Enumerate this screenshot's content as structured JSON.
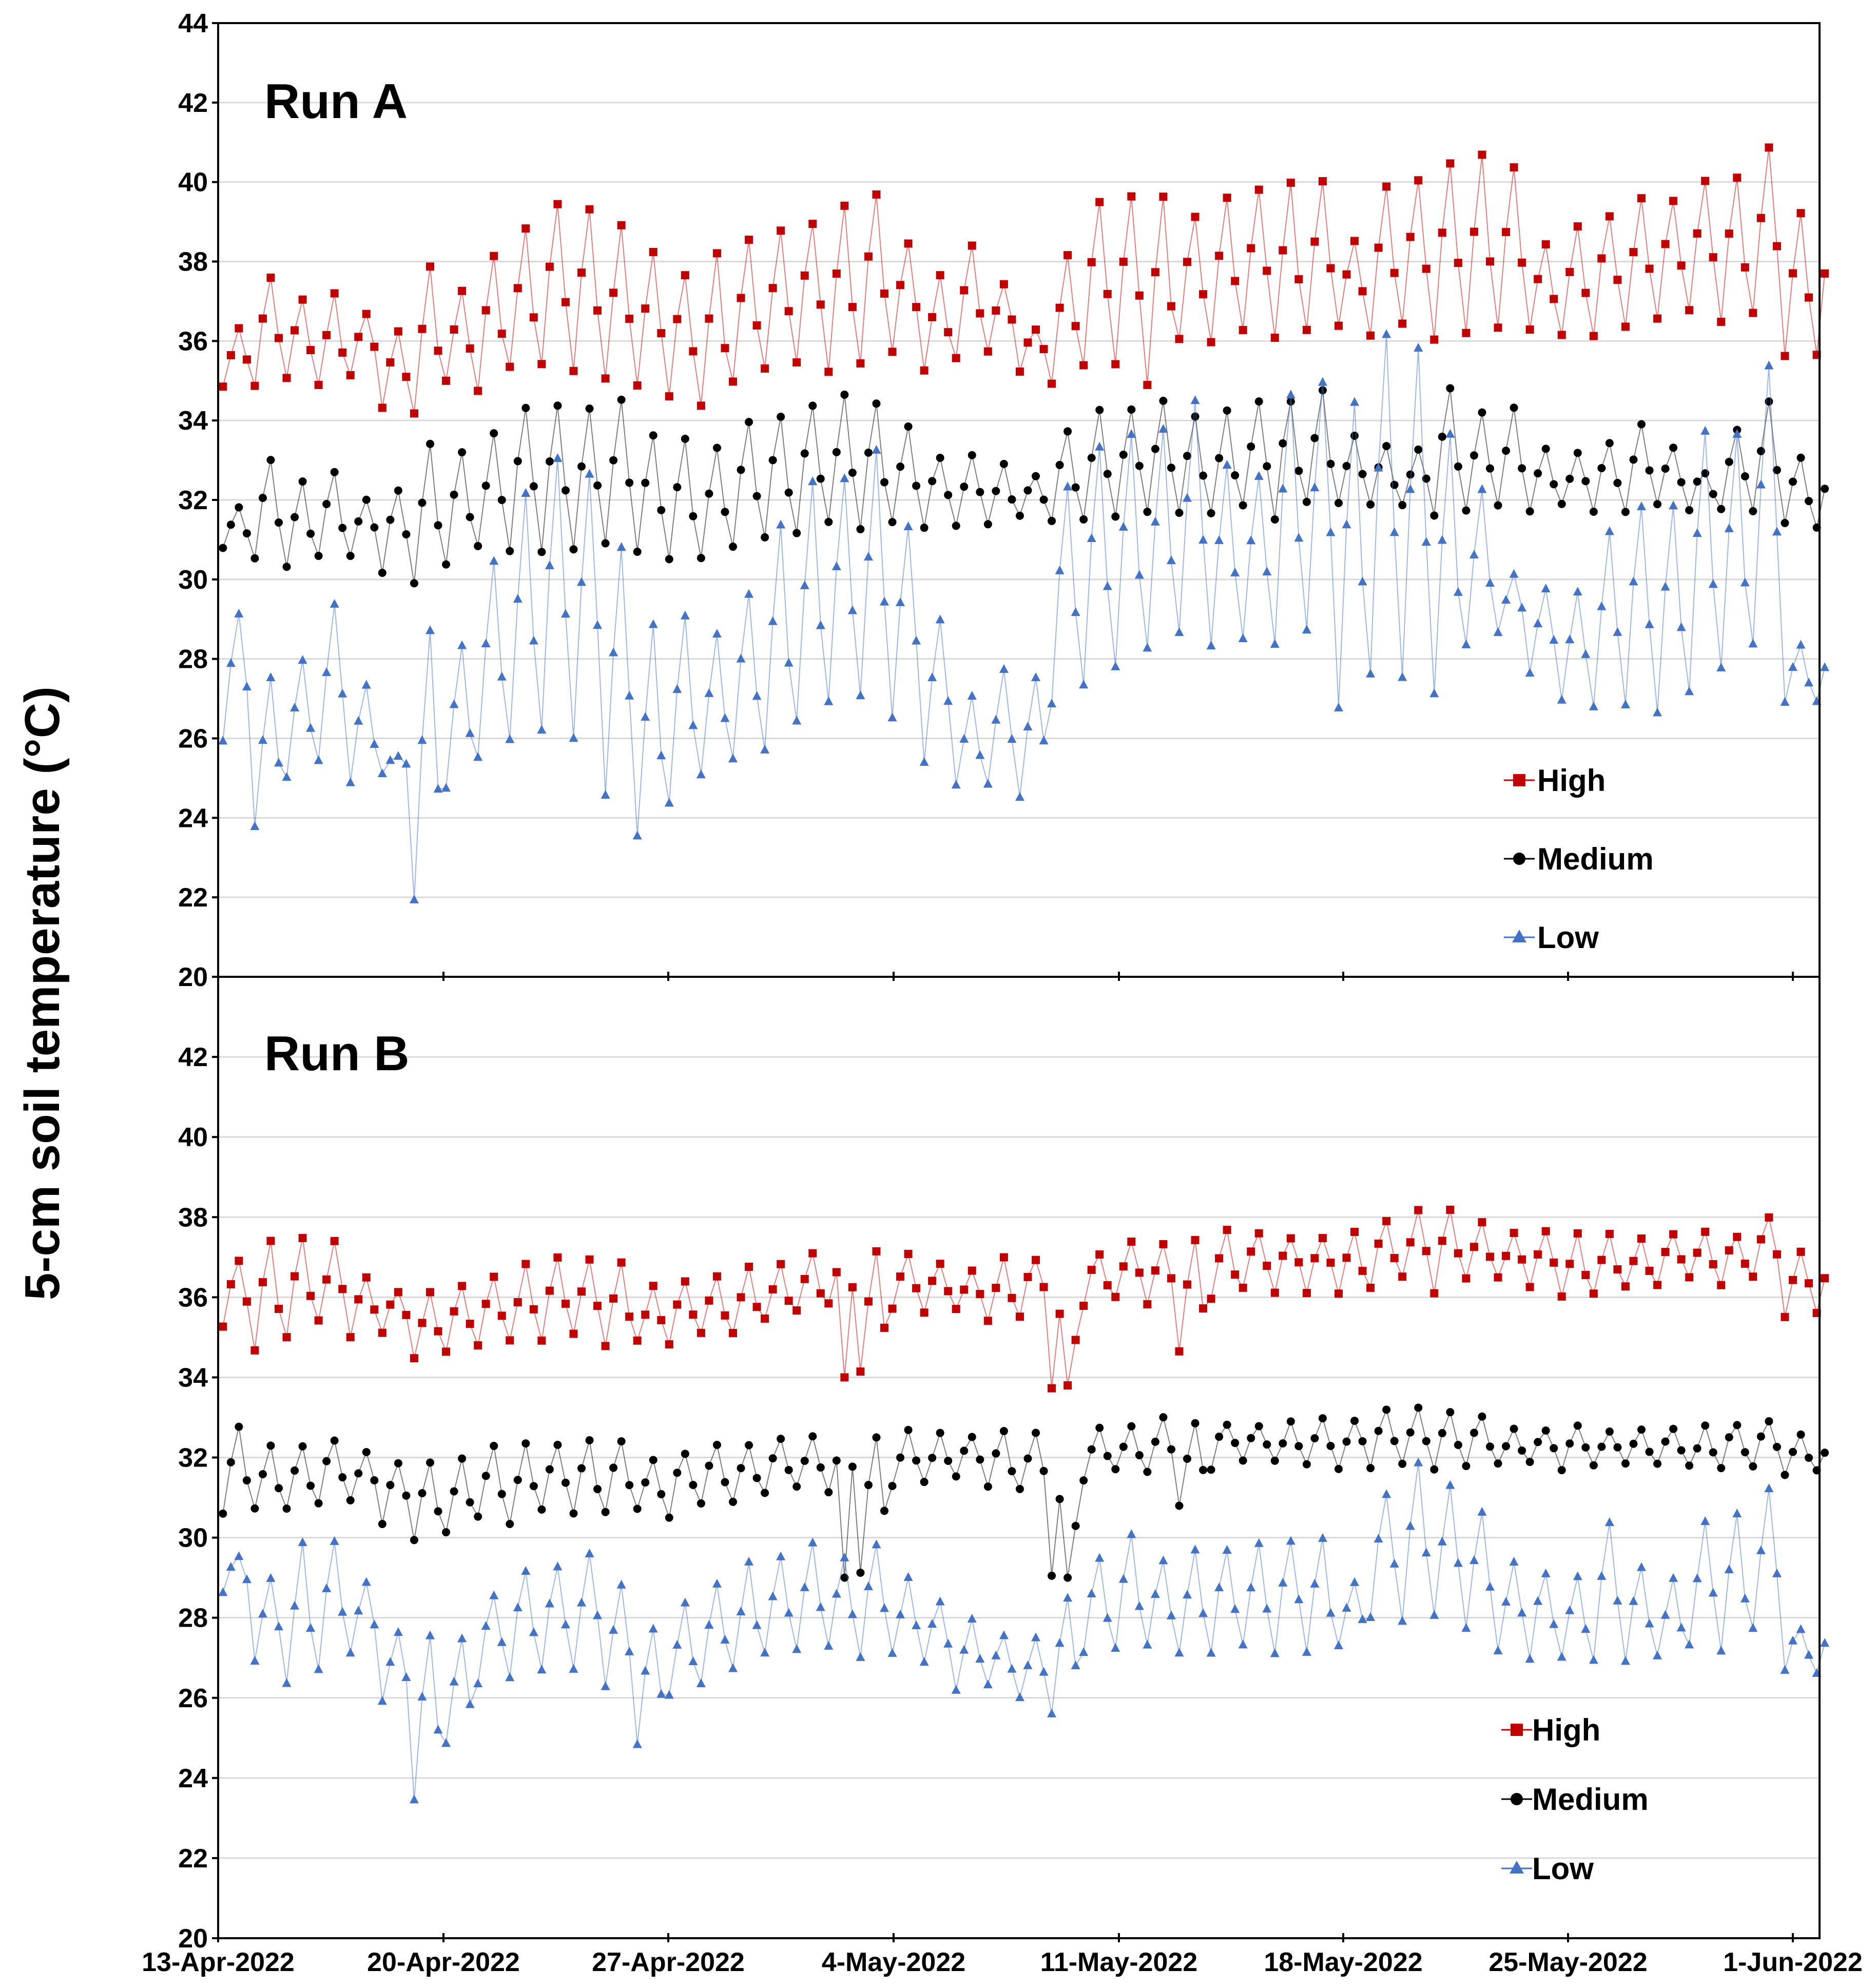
{
  "y_axis_label": "5-cm soil temperature (°C)",
  "colors": {
    "High": "#c00000",
    "Medium": "#000000",
    "Low": "#4472c4"
  },
  "chart_data": [
    {
      "type": "line",
      "title": "Run A",
      "xlabel": "",
      "ylabel": "5-cm soil temperature (°C)",
      "ylim": [
        20,
        44
      ],
      "yticks": [
        20,
        22,
        24,
        26,
        28,
        30,
        32,
        34,
        36,
        38,
        40,
        42,
        44
      ],
      "x_ticks": [
        "13-Apr-2022",
        "20-Apr-2022",
        "27-Apr-2022",
        "4-May-2022",
        "11-May-2022",
        "18-May-2022",
        "25-May-2022",
        "1-Jun-2022"
      ],
      "x_range_days": [
        0,
        50.7
      ],
      "x_unit": "days since 13-Apr-2022",
      "grid": true,
      "legend_position": "bottom-right",
      "legend": [
        "High",
        "Medium",
        "Low"
      ],
      "series": [
        {
          "name": "High",
          "marker": "square",
          "daily_min": [
            34.8,
            34.8,
            35.0,
            34.8,
            35.2,
            34.4,
            34.2,
            35.0,
            34.8,
            35.2,
            35.4,
            35.2,
            35.0,
            34.8,
            34.6,
            34.4,
            35.0,
            35.2,
            35.4,
            35.2,
            35.4,
            35.6,
            35.2,
            35.6,
            35.8,
            35.2,
            35.0,
            35.4,
            35.4,
            34.8,
            36.0,
            36.0,
            36.2,
            36.0,
            36.2,
            36.4,
            36.2,
            36.4,
            36.0,
            36.2,
            36.4,
            36.2,
            36.2,
            36.2,
            36.4,
            36.6,
            36.8,
            36.4,
            36.6,
            35.6
          ],
          "daily_max": [
            36.3,
            37.7,
            37.0,
            37.2,
            36.6,
            36.2,
            37.8,
            37.2,
            38.2,
            38.8,
            39.4,
            39.3,
            38.9,
            38.3,
            37.7,
            38.2,
            38.6,
            38.8,
            39.1,
            39.4,
            39.8,
            38.6,
            37.6,
            38.3,
            37.4,
            36.4,
            38.2,
            39.6,
            39.8,
            39.6,
            39.2,
            39.6,
            39.8,
            40.0,
            40.1,
            38.6,
            39.8,
            40.0,
            40.6,
            40.7,
            40.5,
            38.4,
            38.8,
            39.2,
            39.6,
            39.6,
            40.0,
            40.2,
            41.0,
            39.2
          ]
        },
        {
          "name": "Medium",
          "marker": "circle",
          "daily_min": [
            30.8,
            30.4,
            30.2,
            30.6,
            30.6,
            30.2,
            29.8,
            30.4,
            30.8,
            30.8,
            30.6,
            30.8,
            30.8,
            30.6,
            30.4,
            30.6,
            30.8,
            31.0,
            31.2,
            31.4,
            31.2,
            31.4,
            31.4,
            31.4,
            31.4,
            31.6,
            31.4,
            31.6,
            31.6,
            31.6,
            31.6,
            31.6,
            31.8,
            31.6,
            31.8,
            31.8,
            31.8,
            31.8,
            31.6,
            31.8,
            31.8,
            31.8,
            31.8,
            31.8,
            31.8,
            31.8,
            31.8,
            31.8,
            31.8,
            31.4
          ],
          "daily_max": [
            31.8,
            33.0,
            32.6,
            32.6,
            32.1,
            32.2,
            33.4,
            33.2,
            33.6,
            34.4,
            34.4,
            34.4,
            34.6,
            33.6,
            33.5,
            33.4,
            34.1,
            34.2,
            34.4,
            34.6,
            34.5,
            33.8,
            33.0,
            33.1,
            32.8,
            32.6,
            33.8,
            34.2,
            34.4,
            34.4,
            34.0,
            34.2,
            34.4,
            34.6,
            34.8,
            33.6,
            33.4,
            33.4,
            34.8,
            34.2,
            34.4,
            33.4,
            33.2,
            33.4,
            34.0,
            33.4,
            32.8,
            33.8,
            34.4,
            33.0
          ]
        },
        {
          "name": "Low",
          "marker": "triangle",
          "daily_min": [
            25.8,
            23.8,
            25.0,
            25.4,
            24.8,
            25.2,
            21.8,
            24.6,
            25.4,
            25.8,
            26.2,
            26.0,
            24.6,
            23.4,
            24.4,
            25.0,
            25.4,
            25.6,
            26.4,
            26.8,
            27.0,
            26.6,
            25.4,
            24.8,
            24.8,
            24.6,
            26.8,
            27.4,
            27.8,
            28.2,
            28.6,
            28.2,
            28.4,
            28.4,
            28.6,
            26.6,
            27.6,
            27.4,
            27.0,
            28.4,
            28.6,
            27.6,
            27.0,
            26.8,
            26.8,
            26.6,
            27.2,
            27.6,
            28.2,
            26.8
          ],
          "daily_max": [
            29.2,
            27.6,
            28.0,
            29.4,
            27.4,
            25.6,
            28.8,
            28.4,
            30.4,
            32.2,
            33.2,
            32.8,
            30.8,
            28.8,
            29.2,
            28.6,
            29.6,
            31.4,
            32.4,
            32.6,
            33.2,
            31.4,
            29.0,
            27.0,
            27.8,
            27.6,
            32.4,
            33.4,
            33.6,
            33.8,
            34.6,
            33.0,
            32.6,
            34.8,
            35.0,
            34.6,
            36.2,
            35.8,
            33.8,
            32.2,
            30.2,
            29.8,
            29.6,
            31.2,
            32.0,
            31.8,
            33.8,
            33.6,
            35.4,
            28.4
          ]
        }
      ]
    },
    {
      "type": "line",
      "title": "Run B",
      "xlabel": "",
      "ylabel": "5-cm soil temperature (°C)",
      "ylim": [
        20,
        44
      ],
      "yticks": [
        20,
        22,
        24,
        26,
        28,
        30,
        32,
        34,
        36,
        38,
        40,
        42
      ],
      "x_ticks": [
        "13-Apr-2022",
        "20-Apr-2022",
        "27-Apr-2022",
        "4-May-2022",
        "11-May-2022",
        "18-May-2022",
        "25-May-2022",
        "1-Jun-2022"
      ],
      "x_range_days": [
        0,
        50.7
      ],
      "x_unit": "days since 13-Apr-2022",
      "grid": true,
      "legend_position": "bottom-right",
      "legend": [
        "High",
        "Medium",
        "Low"
      ],
      "series": [
        {
          "name": "High",
          "marker": "square",
          "daily_min": [
            35.2,
            34.6,
            35.0,
            35.4,
            35.0,
            35.0,
            34.4,
            34.6,
            34.8,
            34.8,
            35.0,
            35.0,
            34.8,
            34.8,
            34.8,
            35.0,
            35.2,
            35.4,
            35.6,
            35.8,
            34.0,
            35.6,
            35.6,
            35.6,
            35.4,
            35.6,
            33.8,
            35.8,
            36.0,
            35.8,
            34.6,
            36.0,
            36.2,
            36.2,
            36.2,
            36.2,
            36.2,
            36.4,
            36.2,
            36.4,
            36.4,
            36.2,
            36.0,
            36.2,
            36.2,
            36.4,
            36.4,
            36.4,
            36.6,
            35.6
          ],
          "daily_max": [
            37.0,
            37.4,
            37.4,
            37.3,
            36.6,
            36.2,
            36.2,
            36.4,
            36.6,
            36.8,
            36.9,
            37.0,
            36.8,
            36.2,
            36.4,
            36.6,
            36.7,
            36.8,
            37.0,
            37.2,
            37.1,
            37.0,
            36.8,
            36.8,
            37.0,
            37.0,
            36.8,
            37.2,
            37.4,
            37.4,
            37.5,
            37.6,
            37.6,
            37.6,
            37.6,
            37.6,
            38.0,
            38.2,
            38.2,
            38.0,
            37.6,
            37.6,
            37.6,
            37.6,
            37.6,
            37.6,
            37.6,
            37.6,
            37.9,
            37.2
          ],
          "dips": [
            {
              "day": 19.6,
              "value": 34.0
            },
            {
              "day": 26.6,
              "value": 33.8
            }
          ]
        },
        {
          "name": "Medium",
          "marker": "circle",
          "daily_min": [
            30.6,
            30.6,
            30.8,
            30.8,
            30.8,
            30.4,
            30.0,
            30.2,
            30.4,
            30.4,
            30.6,
            30.6,
            30.6,
            30.6,
            30.6,
            30.8,
            31.0,
            31.2,
            31.2,
            31.2,
            29.2,
            31.4,
            31.4,
            31.4,
            31.2,
            31.2,
            29.0,
            31.4,
            31.6,
            31.6,
            30.8,
            31.8,
            31.8,
            31.8,
            31.8,
            31.8,
            31.8,
            31.8,
            31.8,
            31.8,
            31.8,
            31.8,
            31.8,
            31.8,
            31.8,
            31.8,
            31.8,
            31.8,
            31.8,
            31.6
          ],
          "daily_max": [
            32.7,
            32.3,
            32.3,
            32.5,
            32.2,
            31.9,
            31.8,
            32.0,
            32.2,
            32.3,
            32.4,
            32.4,
            32.4,
            32.0,
            32.2,
            32.3,
            32.4,
            32.5,
            32.5,
            32.6,
            32.6,
            32.6,
            32.5,
            32.5,
            32.6,
            32.6,
            32.4,
            32.7,
            32.8,
            32.9,
            32.9,
            32.9,
            32.9,
            32.9,
            33.0,
            33.0,
            33.2,
            33.2,
            33.1,
            33.0,
            32.8,
            32.8,
            32.7,
            32.7,
            32.7,
            32.7,
            32.7,
            32.8,
            32.9,
            32.5
          ],
          "dips": [
            {
              "day": 19.6,
              "value": 29.0
            },
            {
              "day": 26.6,
              "value": 29.0
            }
          ]
        },
        {
          "name": "Low",
          "marker": "triangle",
          "daily_min": [
            28.6,
            27.0,
            26.4,
            26.8,
            27.0,
            25.8,
            23.5,
            24.8,
            26.4,
            26.6,
            26.8,
            26.8,
            26.2,
            24.8,
            26.0,
            26.4,
            26.6,
            27.0,
            27.2,
            27.2,
            27.0,
            27.0,
            26.8,
            26.2,
            26.2,
            26.0,
            25.6,
            27.2,
            27.2,
            27.2,
            27.2,
            27.2,
            27.2,
            27.2,
            27.0,
            27.4,
            28.0,
            28.0,
            28.0,
            27.6,
            27.2,
            27.0,
            27.0,
            27.0,
            27.0,
            27.0,
            27.2,
            27.2,
            27.6,
            26.6
          ],
          "daily_max": [
            29.6,
            28.9,
            29.8,
            29.9,
            29.0,
            27.6,
            27.6,
            27.6,
            28.6,
            29.2,
            29.4,
            29.6,
            28.8,
            27.8,
            28.4,
            28.9,
            29.3,
            29.6,
            29.8,
            29.6,
            29.9,
            29.0,
            28.4,
            28.0,
            27.6,
            27.4,
            28.6,
            29.4,
            30.0,
            29.4,
            29.6,
            29.8,
            29.8,
            30.0,
            30.0,
            29.0,
            31.2,
            31.8,
            31.4,
            30.6,
            29.4,
            29.2,
            29.0,
            30.4,
            29.2,
            29.0,
            30.4,
            30.6,
            31.2,
            27.8
          ]
        }
      ]
    }
  ]
}
